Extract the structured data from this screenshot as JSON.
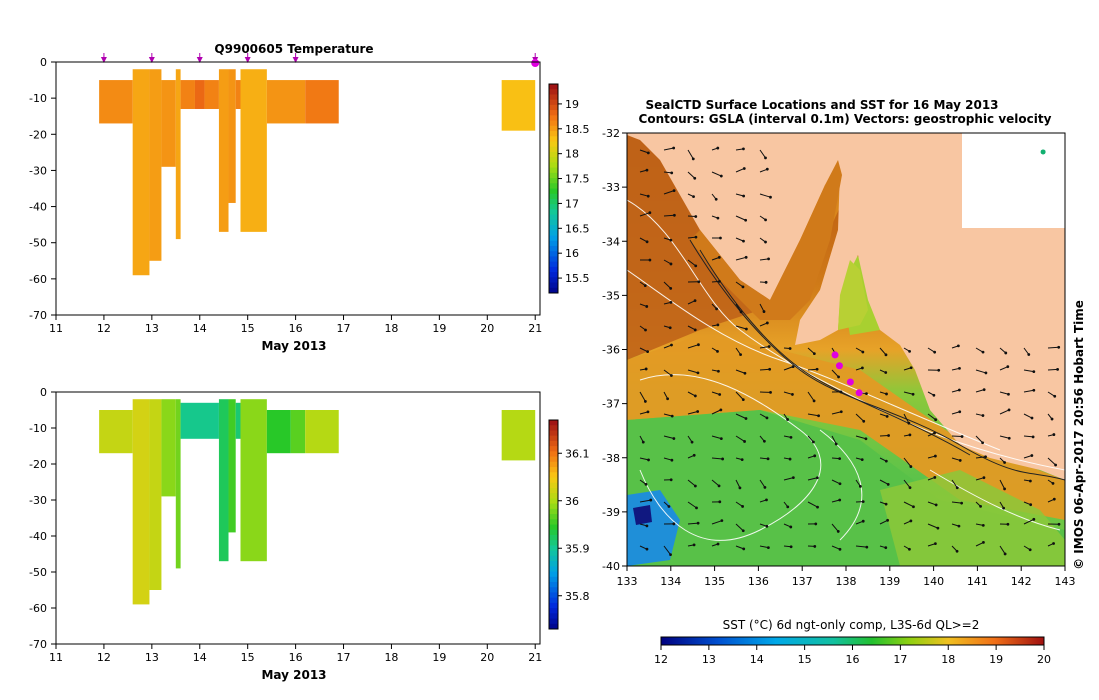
{
  "colors": {
    "temp_low": "#24147a",
    "temp_mid": "#1ac06a",
    "temp_high": "#a82418",
    "land": "#f8c6a2",
    "frame": "#000000",
    "marker": "#e000e0",
    "profile_marker": "#b000b0"
  },
  "chart_data": [
    {
      "id": "temperature-section",
      "type": "heatmap",
      "title": "Q9900605  Temperature",
      "xlabel": "May 2013",
      "ylabel": "",
      "xlim": [
        11,
        21.1
      ],
      "ylim": [
        -70,
        0
      ],
      "x_ticks": [
        11,
        12,
        13,
        14,
        15,
        16,
        17,
        18,
        19,
        20,
        21
      ],
      "y_ticks": [
        0,
        -10,
        -20,
        -30,
        -40,
        -50,
        -60,
        -70
      ],
      "colorbar": {
        "min": 15.2,
        "max": 19.4,
        "ticks": [
          15.5,
          16,
          16.5,
          17,
          17.5,
          18,
          18.5,
          19
        ]
      },
      "profile_markers": [
        12,
        13,
        14,
        15,
        16,
        21
      ],
      "cells": [
        {
          "x0": 11.9,
          "x1": 12.6,
          "d0": -5,
          "d1": -17,
          "v": 18.65
        },
        {
          "x0": 12.6,
          "x1": 12.95,
          "d0": -2,
          "d1": -59,
          "v": 18.5
        },
        {
          "x0": 12.95,
          "x1": 13.2,
          "d0": -2,
          "d1": -55,
          "v": 18.55
        },
        {
          "x0": 13.2,
          "x1": 13.5,
          "d0": -5,
          "d1": -29,
          "v": 18.6
        },
        {
          "x0": 13.5,
          "x1": 13.6,
          "d0": -2,
          "d1": -49,
          "v": 18.5
        },
        {
          "x0": 13.6,
          "x1": 13.9,
          "d0": -5,
          "d1": -13,
          "v": 18.7
        },
        {
          "x0": 13.9,
          "x1": 14.1,
          "d0": -5,
          "d1": -13,
          "v": 18.85
        },
        {
          "x0": 14.1,
          "x1": 14.4,
          "d0": -5,
          "d1": -13,
          "v": 18.7
        },
        {
          "x0": 14.4,
          "x1": 14.6,
          "d0": -2,
          "d1": -47,
          "v": 18.55
        },
        {
          "x0": 14.6,
          "x1": 14.75,
          "d0": -2,
          "d1": -39,
          "v": 18.6
        },
        {
          "x0": 14.75,
          "x1": 14.85,
          "d0": -5,
          "d1": -13,
          "v": 18.7
        },
        {
          "x0": 14.85,
          "x1": 15.4,
          "d0": -2,
          "d1": -47,
          "v": 18.45
        },
        {
          "x0": 15.4,
          "x1": 16.2,
          "d0": -5,
          "d1": -17,
          "v": 18.6
        },
        {
          "x0": 16.2,
          "x1": 16.9,
          "d0": -5,
          "d1": -17,
          "v": 18.75
        },
        {
          "x0": 20.3,
          "x1": 21.0,
          "d0": -5,
          "d1": -19,
          "v": 18.35
        }
      ]
    },
    {
      "id": "salinity-section",
      "type": "heatmap",
      "title": "",
      "xlabel": "May 2013",
      "ylabel": "",
      "xlim": [
        11,
        21.1
      ],
      "ylim": [
        -70,
        0
      ],
      "x_ticks": [
        11,
        12,
        13,
        14,
        15,
        16,
        17,
        18,
        19,
        20,
        21
      ],
      "y_ticks": [
        0,
        -10,
        -20,
        -30,
        -40,
        -50,
        -60,
        -70
      ],
      "colorbar": {
        "min": 35.73,
        "max": 36.17,
        "ticks": [
          35.8,
          35.9,
          36,
          36.1
        ]
      },
      "cells": [
        {
          "x0": 11.9,
          "x1": 12.6,
          "d0": -5,
          "d1": -17,
          "v": 36.02
        },
        {
          "x0": 12.6,
          "x1": 12.95,
          "d0": -2,
          "d1": -59,
          "v": 36.03
        },
        {
          "x0": 12.95,
          "x1": 13.2,
          "d0": -2,
          "d1": -55,
          "v": 36.02
        },
        {
          "x0": 13.2,
          "x1": 13.5,
          "d0": -2,
          "d1": -29,
          "v": 35.99
        },
        {
          "x0": 13.5,
          "x1": 13.6,
          "d0": -2,
          "d1": -49,
          "v": 35.98
        },
        {
          "x0": 13.6,
          "x1": 14.4,
          "d0": -3,
          "d1": -13,
          "v": 35.91
        },
        {
          "x0": 14.4,
          "x1": 14.6,
          "d0": -2,
          "d1": -47,
          "v": 35.93
        },
        {
          "x0": 14.6,
          "x1": 14.75,
          "d0": -2,
          "d1": -39,
          "v": 35.96
        },
        {
          "x0": 14.75,
          "x1": 14.85,
          "d0": -3,
          "d1": -13,
          "v": 35.92
        },
        {
          "x0": 14.85,
          "x1": 15.4,
          "d0": -2,
          "d1": -47,
          "v": 35.99
        },
        {
          "x0": 15.4,
          "x1": 15.9,
          "d0": -5,
          "d1": -17,
          "v": 35.95
        },
        {
          "x0": 15.9,
          "x1": 16.2,
          "d0": -5,
          "d1": -17,
          "v": 35.97
        },
        {
          "x0": 16.2,
          "x1": 16.9,
          "d0": -5,
          "d1": -17,
          "v": 36.01
        },
        {
          "x0": 20.3,
          "x1": 21.0,
          "d0": -5,
          "d1": -19,
          "v": 36.01
        }
      ]
    },
    {
      "id": "sst-map",
      "type": "heatmap",
      "title": "SealCTD Surface Locations and SST for 16 May 2013",
      "subtitle": "Contours: GSLA (interval 0.1m) Vectors: geostrophic velocity",
      "side_label": "© IMOS 06-Apr-2017 20:56 Hobart Time",
      "xlabel": "",
      "ylabel": "",
      "xlim": [
        133,
        143
      ],
      "ylim": [
        -40,
        -32
      ],
      "x_ticks": [
        133,
        134,
        135,
        136,
        137,
        138,
        139,
        140,
        141,
        142,
        143
      ],
      "y_ticks": [
        -32,
        -33,
        -34,
        -35,
        -36,
        -37,
        -38,
        -39,
        -40
      ],
      "colorbar": {
        "label": "SST (°C) 6d ngt-only comp, L3S-6d QL>=2",
        "min": 12,
        "max": 20,
        "ticks": [
          12,
          13,
          14,
          15,
          16,
          17,
          18,
          19,
          20
        ]
      },
      "zones": [
        {
          "name": "shelf-north",
          "sst": 18.6
        },
        {
          "name": "gulf-water",
          "sst": 18.9
        },
        {
          "name": "front",
          "sst": 18.0
        },
        {
          "name": "mid-ocean",
          "sst": 16.6
        },
        {
          "name": "south",
          "sst": 17.0
        },
        {
          "name": "south-west-cold",
          "sst": 14.5
        },
        {
          "name": "coastal-green",
          "sst": 16.0
        }
      ],
      "seal_locations": [
        {
          "lon": 137.75,
          "lat": -36.1
        },
        {
          "lon": 137.85,
          "lat": -36.3
        },
        {
          "lon": 138.1,
          "lat": -36.6
        },
        {
          "lon": 138.3,
          "lat": -36.8
        },
        {
          "lon": 142.5,
          "lat": -32.35
        }
      ]
    }
  ]
}
